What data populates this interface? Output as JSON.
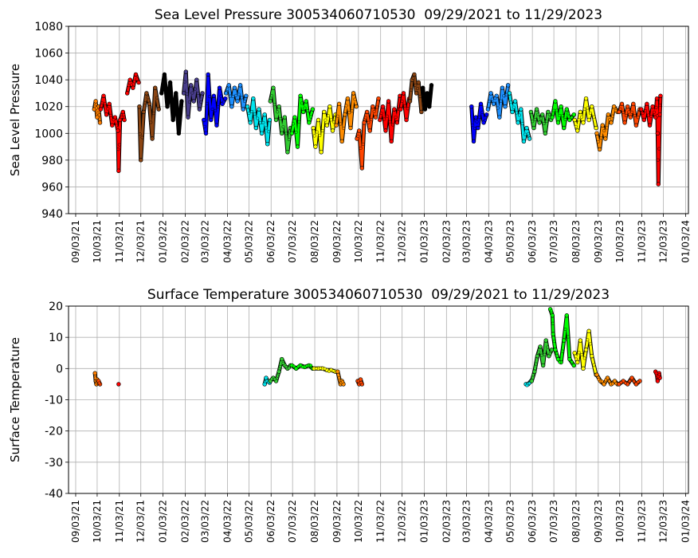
{
  "chart_data": [
    {
      "type": "scatter",
      "title": "Sea Level Pressure 300534060710530  09/29/2021 to 11/29/2023",
      "xlabel": "",
      "ylabel": "Sea Level Pressure",
      "ylim": [
        940,
        1080
      ],
      "yticks": [
        940,
        960,
        980,
        1000,
        1020,
        1040,
        1060,
        1080
      ],
      "grid": true,
      "x_ticks": [
        "09/03/21",
        "10/03/21",
        "11/03/21",
        "12/03/21",
        "01/03/22",
        "02/03/22",
        "03/03/22",
        "04/03/22",
        "05/03/22",
        "06/03/22",
        "07/03/22",
        "08/03/22",
        "09/03/22",
        "10/03/22",
        "11/03/22",
        "12/03/22",
        "01/03/23",
        "02/03/23",
        "03/03/23",
        "04/03/23",
        "05/03/23",
        "06/03/23",
        "07/03/23",
        "08/03/23",
        "09/03/23",
        "10/03/23",
        "11/03/23",
        "12/03/23",
        "01/03/24"
      ],
      "series": [
        {
          "color": "#ff7f00",
          "x": [
            "2021-09-29",
            "2021-10-01",
            "2021-10-03",
            "2021-10-05",
            "2021-10-07"
          ],
          "y": [
            1018,
            1024,
            1012,
            1020,
            1008
          ]
        },
        {
          "color": "#ff0000",
          "x": [
            "2021-10-08",
            "2021-10-12",
            "2021-10-16",
            "2021-10-20",
            "2021-10-24",
            "2021-10-28",
            "2021-11-01",
            "2021-11-02",
            "2021-11-04",
            "2021-11-08",
            "2021-11-10"
          ],
          "y": [
            1018,
            1028,
            1014,
            1022,
            1006,
            1012,
            1002,
            972,
            1010,
            1016,
            1010
          ]
        },
        {
          "color": "#ff0000",
          "x": [
            "2021-11-14",
            "2021-11-18",
            "2021-11-22",
            "2021-11-26",
            "2021-11-30"
          ],
          "y": [
            1030,
            1040,
            1034,
            1044,
            1038
          ]
        },
        {
          "color": "#8b4513",
          "x": [
            "2021-12-01",
            "2021-12-03",
            "2021-12-07",
            "2021-12-11",
            "2021-12-15",
            "2021-12-19",
            "2021-12-23",
            "2021-12-28"
          ],
          "y": [
            1020,
            980,
            1016,
            1030,
            1022,
            996,
            1034,
            1018
          ]
        },
        {
          "color": "#000000",
          "x": [
            "2022-01-01",
            "2022-01-05",
            "2022-01-09",
            "2022-01-13",
            "2022-01-17",
            "2022-01-21",
            "2022-01-25",
            "2022-01-29"
          ],
          "y": [
            1030,
            1044,
            1020,
            1038,
            1010,
            1030,
            1000,
            1024
          ]
        },
        {
          "color": "#483d8b",
          "x": [
            "2022-02-01",
            "2022-02-04",
            "2022-02-07",
            "2022-02-11",
            "2022-02-15",
            "2022-02-19",
            "2022-02-23",
            "2022-02-27"
          ],
          "y": [
            1030,
            1046,
            1012,
            1036,
            1024,
            1040,
            1018,
            1030
          ]
        },
        {
          "color": "#0000ff",
          "x": [
            "2022-03-01",
            "2022-03-04",
            "2022-03-07",
            "2022-03-11",
            "2022-03-15",
            "2022-03-19",
            "2022-03-23",
            "2022-03-27",
            "2022-03-31"
          ],
          "y": [
            1010,
            1000,
            1044,
            1010,
            1028,
            1006,
            1034,
            1022,
            1026
          ]
        },
        {
          "color": "#1e90ff",
          "x": [
            "2022-04-01",
            "2022-04-05",
            "2022-04-09",
            "2022-04-13",
            "2022-04-17",
            "2022-04-21",
            "2022-04-25",
            "2022-04-29"
          ],
          "y": [
            1030,
            1036,
            1020,
            1034,
            1024,
            1036,
            1018,
            1028
          ]
        },
        {
          "color": "#00e5ee",
          "x": [
            "2022-05-01",
            "2022-05-05",
            "2022-05-09",
            "2022-05-13",
            "2022-05-17",
            "2022-05-21",
            "2022-05-25",
            "2022-05-29",
            "2022-06-01"
          ],
          "y": [
            1020,
            1008,
            1026,
            1004,
            1018,
            1000,
            1014,
            992,
            1010
          ]
        },
        {
          "color": "#32cd32",
          "x": [
            "2022-06-02",
            "2022-06-06",
            "2022-06-10",
            "2022-06-14",
            "2022-06-18",
            "2022-06-22",
            "2022-06-26",
            "2022-06-30"
          ],
          "y": [
            1024,
            1034,
            1010,
            1020,
            1000,
            1012,
            986,
            1004
          ]
        },
        {
          "color": "#00ff00",
          "x": [
            "2022-07-02",
            "2022-07-06",
            "2022-07-10",
            "2022-07-14",
            "2022-07-18",
            "2022-07-22",
            "2022-07-26",
            "2022-07-31"
          ],
          "y": [
            1000,
            1012,
            990,
            1028,
            1016,
            1024,
            1008,
            1018
          ]
        },
        {
          "color": "#ffff00",
          "x": [
            "2022-08-01",
            "2022-08-04",
            "2022-08-08",
            "2022-08-12",
            "2022-08-16",
            "2022-08-20",
            "2022-08-24",
            "2022-08-28",
            "2022-09-01"
          ],
          "y": [
            1004,
            990,
            1010,
            986,
            1016,
            1006,
            1020,
            1002,
            1014
          ]
        },
        {
          "color": "#ff8c00",
          "x": [
            "2022-09-02",
            "2022-09-06",
            "2022-09-10",
            "2022-09-14",
            "2022-09-18",
            "2022-09-22",
            "2022-09-26",
            "2022-09-30"
          ],
          "y": [
            1006,
            1022,
            994,
            1014,
            1026,
            1004,
            1030,
            1020
          ]
        },
        {
          "color": "#ff4500",
          "x": [
            "2022-10-01",
            "2022-10-04",
            "2022-10-08",
            "2022-10-11",
            "2022-10-15",
            "2022-10-19",
            "2022-10-23",
            "2022-10-27",
            "2022-10-31"
          ],
          "y": [
            996,
            1002,
            974,
            1008,
            1016,
            1002,
            1020,
            1012,
            1026
          ]
        },
        {
          "color": "#ff0000",
          "x": [
            "2022-11-02",
            "2022-11-06",
            "2022-11-10",
            "2022-11-14",
            "2022-11-18",
            "2022-11-22",
            "2022-11-26",
            "2022-11-30"
          ],
          "y": [
            1010,
            1020,
            1002,
            1024,
            994,
            1018,
            1008,
            1028
          ]
        },
        {
          "color": "#ff0000",
          "x": [
            "2022-12-01",
            "2022-12-05",
            "2022-12-09",
            "2022-12-13"
          ],
          "y": [
            1018,
            1030,
            1010,
            1026
          ]
        },
        {
          "color": "#8b4513",
          "x": [
            "2022-12-14",
            "2022-12-17",
            "2022-12-20",
            "2022-12-23",
            "2022-12-26",
            "2022-12-30"
          ],
          "y": [
            1024,
            1040,
            1044,
            1030,
            1038,
            1016
          ]
        },
        {
          "color": "#000000",
          "x": [
            "2023-01-01",
            "2023-01-04",
            "2023-01-07",
            "2023-01-10",
            "2023-01-13"
          ],
          "y": [
            1034,
            1018,
            1030,
            1020,
            1036
          ]
        },
        {
          "color": "#0000ff",
          "x": [
            "2023-03-10",
            "2023-03-13",
            "2023-03-16",
            "2023-03-19",
            "2023-03-23",
            "2023-03-27",
            "2023-03-31"
          ],
          "y": [
            1020,
            994,
            1012,
            1004,
            1022,
            1008,
            1014
          ]
        },
        {
          "color": "#1e90ff",
          "x": [
            "2023-04-02",
            "2023-04-06",
            "2023-04-10",
            "2023-04-14",
            "2023-04-18",
            "2023-04-22",
            "2023-04-26",
            "2023-04-30"
          ],
          "y": [
            1018,
            1030,
            1022,
            1028,
            1012,
            1034,
            1020,
            1036
          ]
        },
        {
          "color": "#00e5ee",
          "x": [
            "2023-05-02",
            "2023-05-06",
            "2023-05-10",
            "2023-05-14",
            "2023-05-18",
            "2023-05-22",
            "2023-05-26",
            "2023-05-30"
          ],
          "y": [
            1030,
            1016,
            1024,
            1008,
            1018,
            994,
            1004,
            996
          ]
        },
        {
          "color": "#32cd32",
          "x": [
            "2023-06-01",
            "2023-06-05",
            "2023-06-09",
            "2023-06-13",
            "2023-06-17",
            "2023-06-21",
            "2023-06-25",
            "2023-06-29"
          ],
          "y": [
            1016,
            1004,
            1018,
            1008,
            1014,
            1000,
            1016,
            1010
          ]
        },
        {
          "color": "#00ff00",
          "x": [
            "2023-07-01",
            "2023-07-05",
            "2023-07-09",
            "2023-07-13",
            "2023-07-17",
            "2023-07-21",
            "2023-07-25",
            "2023-07-31"
          ],
          "y": [
            1012,
            1024,
            1008,
            1020,
            1004,
            1018,
            1010,
            1014
          ]
        },
        {
          "color": "#ffff00",
          "x": [
            "2023-08-01",
            "2023-08-05",
            "2023-08-09",
            "2023-08-13",
            "2023-08-17",
            "2023-08-21",
            "2023-08-25",
            "2023-08-31"
          ],
          "y": [
            1010,
            1002,
            1016,
            1008,
            1026,
            1010,
            1020,
            1004
          ]
        },
        {
          "color": "#ff8c00",
          "x": [
            "2023-09-01",
            "2023-09-05",
            "2023-09-09",
            "2023-09-13",
            "2023-09-17",
            "2023-09-21",
            "2023-09-25",
            "2023-09-30"
          ],
          "y": [
            1000,
            988,
            1006,
            996,
            1014,
            1008,
            1020,
            1016
          ]
        },
        {
          "color": "#ff4500",
          "x": [
            "2023-10-02",
            "2023-10-06",
            "2023-10-10",
            "2023-10-14",
            "2023-10-18",
            "2023-10-22",
            "2023-10-26",
            "2023-10-31"
          ],
          "y": [
            1016,
            1022,
            1008,
            1020,
            1012,
            1022,
            1006,
            1018
          ]
        },
        {
          "color": "#ff0000",
          "x": [
            "2023-11-02",
            "2023-11-06",
            "2023-11-10",
            "2023-11-14",
            "2023-11-18",
            "2023-11-22",
            "2023-11-24",
            "2023-11-25",
            "2023-11-26",
            "2023-11-28",
            "2023-11-29"
          ],
          "y": [
            1018,
            1010,
            1022,
            1006,
            1020,
            1012,
            1026,
            1000,
            962,
            1014,
            1028
          ]
        }
      ]
    },
    {
      "type": "scatter",
      "title": "Surface Temperature 300534060710530  09/29/2021 to 11/29/2023",
      "xlabel": "",
      "ylabel": "Surface Temperature",
      "ylim": [
        -40,
        20
      ],
      "yticks": [
        -40,
        -30,
        -20,
        -10,
        0,
        10,
        20
      ],
      "grid": true,
      "x_ticks": [
        "09/03/21",
        "10/03/21",
        "11/03/21",
        "12/03/21",
        "01/03/22",
        "02/03/22",
        "03/03/22",
        "04/03/22",
        "05/03/22",
        "06/03/22",
        "07/03/22",
        "08/03/22",
        "09/03/22",
        "10/03/22",
        "11/03/22",
        "12/03/22",
        "01/03/23",
        "02/03/23",
        "03/03/23",
        "04/03/23",
        "05/03/23",
        "06/03/23",
        "07/03/23",
        "08/03/23",
        "09/03/23",
        "10/03/23",
        "11/03/23",
        "12/03/23",
        "01/03/24"
      ],
      "series": [
        {
          "color": "#ff7f00",
          "x": [
            "2021-09-30",
            "2021-10-01",
            "2021-10-02",
            "2021-10-03",
            "2021-10-04"
          ],
          "y": [
            -1.5,
            -4,
            -5,
            -3.5,
            -4.5
          ]
        },
        {
          "color": "#ff4500",
          "x": [
            "2021-10-05",
            "2021-10-07"
          ],
          "y": [
            -4,
            -5
          ]
        },
        {
          "color": "#ff0000",
          "x": [
            "2021-11-02"
          ],
          "y": [
            -5
          ]
        },
        {
          "color": "#00e5ee",
          "x": [
            "2022-05-25",
            "2022-05-27",
            "2022-05-29",
            "2022-06-01"
          ],
          "y": [
            -5,
            -3,
            -4,
            -4.5
          ]
        },
        {
          "color": "#32cd32",
          "x": [
            "2022-06-02",
            "2022-06-06",
            "2022-06-10",
            "2022-06-14",
            "2022-06-18",
            "2022-06-22",
            "2022-06-26",
            "2022-06-30"
          ],
          "y": [
            -4,
            -3,
            -4,
            -1,
            3,
            1,
            0,
            1
          ]
        },
        {
          "color": "#00ff00",
          "x": [
            "2022-07-02",
            "2022-07-08",
            "2022-07-14",
            "2022-07-20",
            "2022-07-26",
            "2022-07-31"
          ],
          "y": [
            1,
            0,
            1,
            0.5,
            1,
            0
          ]
        },
        {
          "color": "#ffff00",
          "x": [
            "2022-08-02",
            "2022-08-08",
            "2022-08-14",
            "2022-08-20",
            "2022-08-26",
            "2022-09-01"
          ],
          "y": [
            0,
            0,
            0,
            -0.5,
            -0.5,
            -1
          ]
        },
        {
          "color": "#ff8c00",
          "x": [
            "2022-09-04",
            "2022-09-08",
            "2022-09-10",
            "2022-09-12"
          ],
          "y": [
            -1,
            -5,
            -4,
            -5
          ]
        },
        {
          "color": "#ff4500",
          "x": [
            "2022-10-02",
            "2022-10-04",
            "2022-10-06",
            "2022-10-08"
          ],
          "y": [
            -4,
            -5,
            -3.5,
            -5
          ]
        },
        {
          "color": "#00e5ee",
          "x": [
            "2023-05-25",
            "2023-05-28",
            "2023-06-01"
          ],
          "y": [
            -5,
            -5,
            -4
          ]
        },
        {
          "color": "#32cd32",
          "x": [
            "2023-06-02",
            "2023-06-06",
            "2023-06-10",
            "2023-06-14",
            "2023-06-18",
            "2023-06-22",
            "2023-06-26",
            "2023-06-30"
          ],
          "y": [
            -4,
            -1,
            4,
            7,
            1,
            9,
            4,
            6
          ]
        },
        {
          "color": "#00ff00",
          "x": [
            "2023-06-28",
            "2023-07-01",
            "2023-07-02",
            "2023-07-05",
            "2023-07-09",
            "2023-07-13",
            "2023-07-17",
            "2023-07-21",
            "2023-07-25",
            "2023-07-31"
          ],
          "y": [
            19,
            17,
            11,
            6,
            3,
            2,
            9,
            17,
            3,
            1
          ]
        },
        {
          "color": "#ffff00",
          "x": [
            "2023-08-01",
            "2023-08-05",
            "2023-08-09",
            "2023-08-13",
            "2023-08-17",
            "2023-08-21",
            "2023-08-25",
            "2023-08-31"
          ],
          "y": [
            5,
            2,
            9,
            0,
            6,
            12,
            4,
            -2
          ]
        },
        {
          "color": "#ff8c00",
          "x": [
            "2023-09-01",
            "2023-09-06",
            "2023-09-11",
            "2023-09-16",
            "2023-09-21",
            "2023-09-26",
            "2023-09-30"
          ],
          "y": [
            -2,
            -4,
            -5,
            -3,
            -5,
            -4,
            -5
          ]
        },
        {
          "color": "#ff4500",
          "x": [
            "2023-10-02",
            "2023-10-08",
            "2023-10-14",
            "2023-10-20",
            "2023-10-26",
            "2023-10-31"
          ],
          "y": [
            -5,
            -4,
            -5,
            -3,
            -5,
            -4
          ]
        },
        {
          "color": "#ff0000",
          "x": [
            "2023-11-22",
            "2023-11-24",
            "2023-11-25",
            "2023-11-27",
            "2023-11-28"
          ],
          "y": [
            -1,
            -2,
            -4,
            -1.5,
            -3
          ]
        }
      ]
    }
  ]
}
